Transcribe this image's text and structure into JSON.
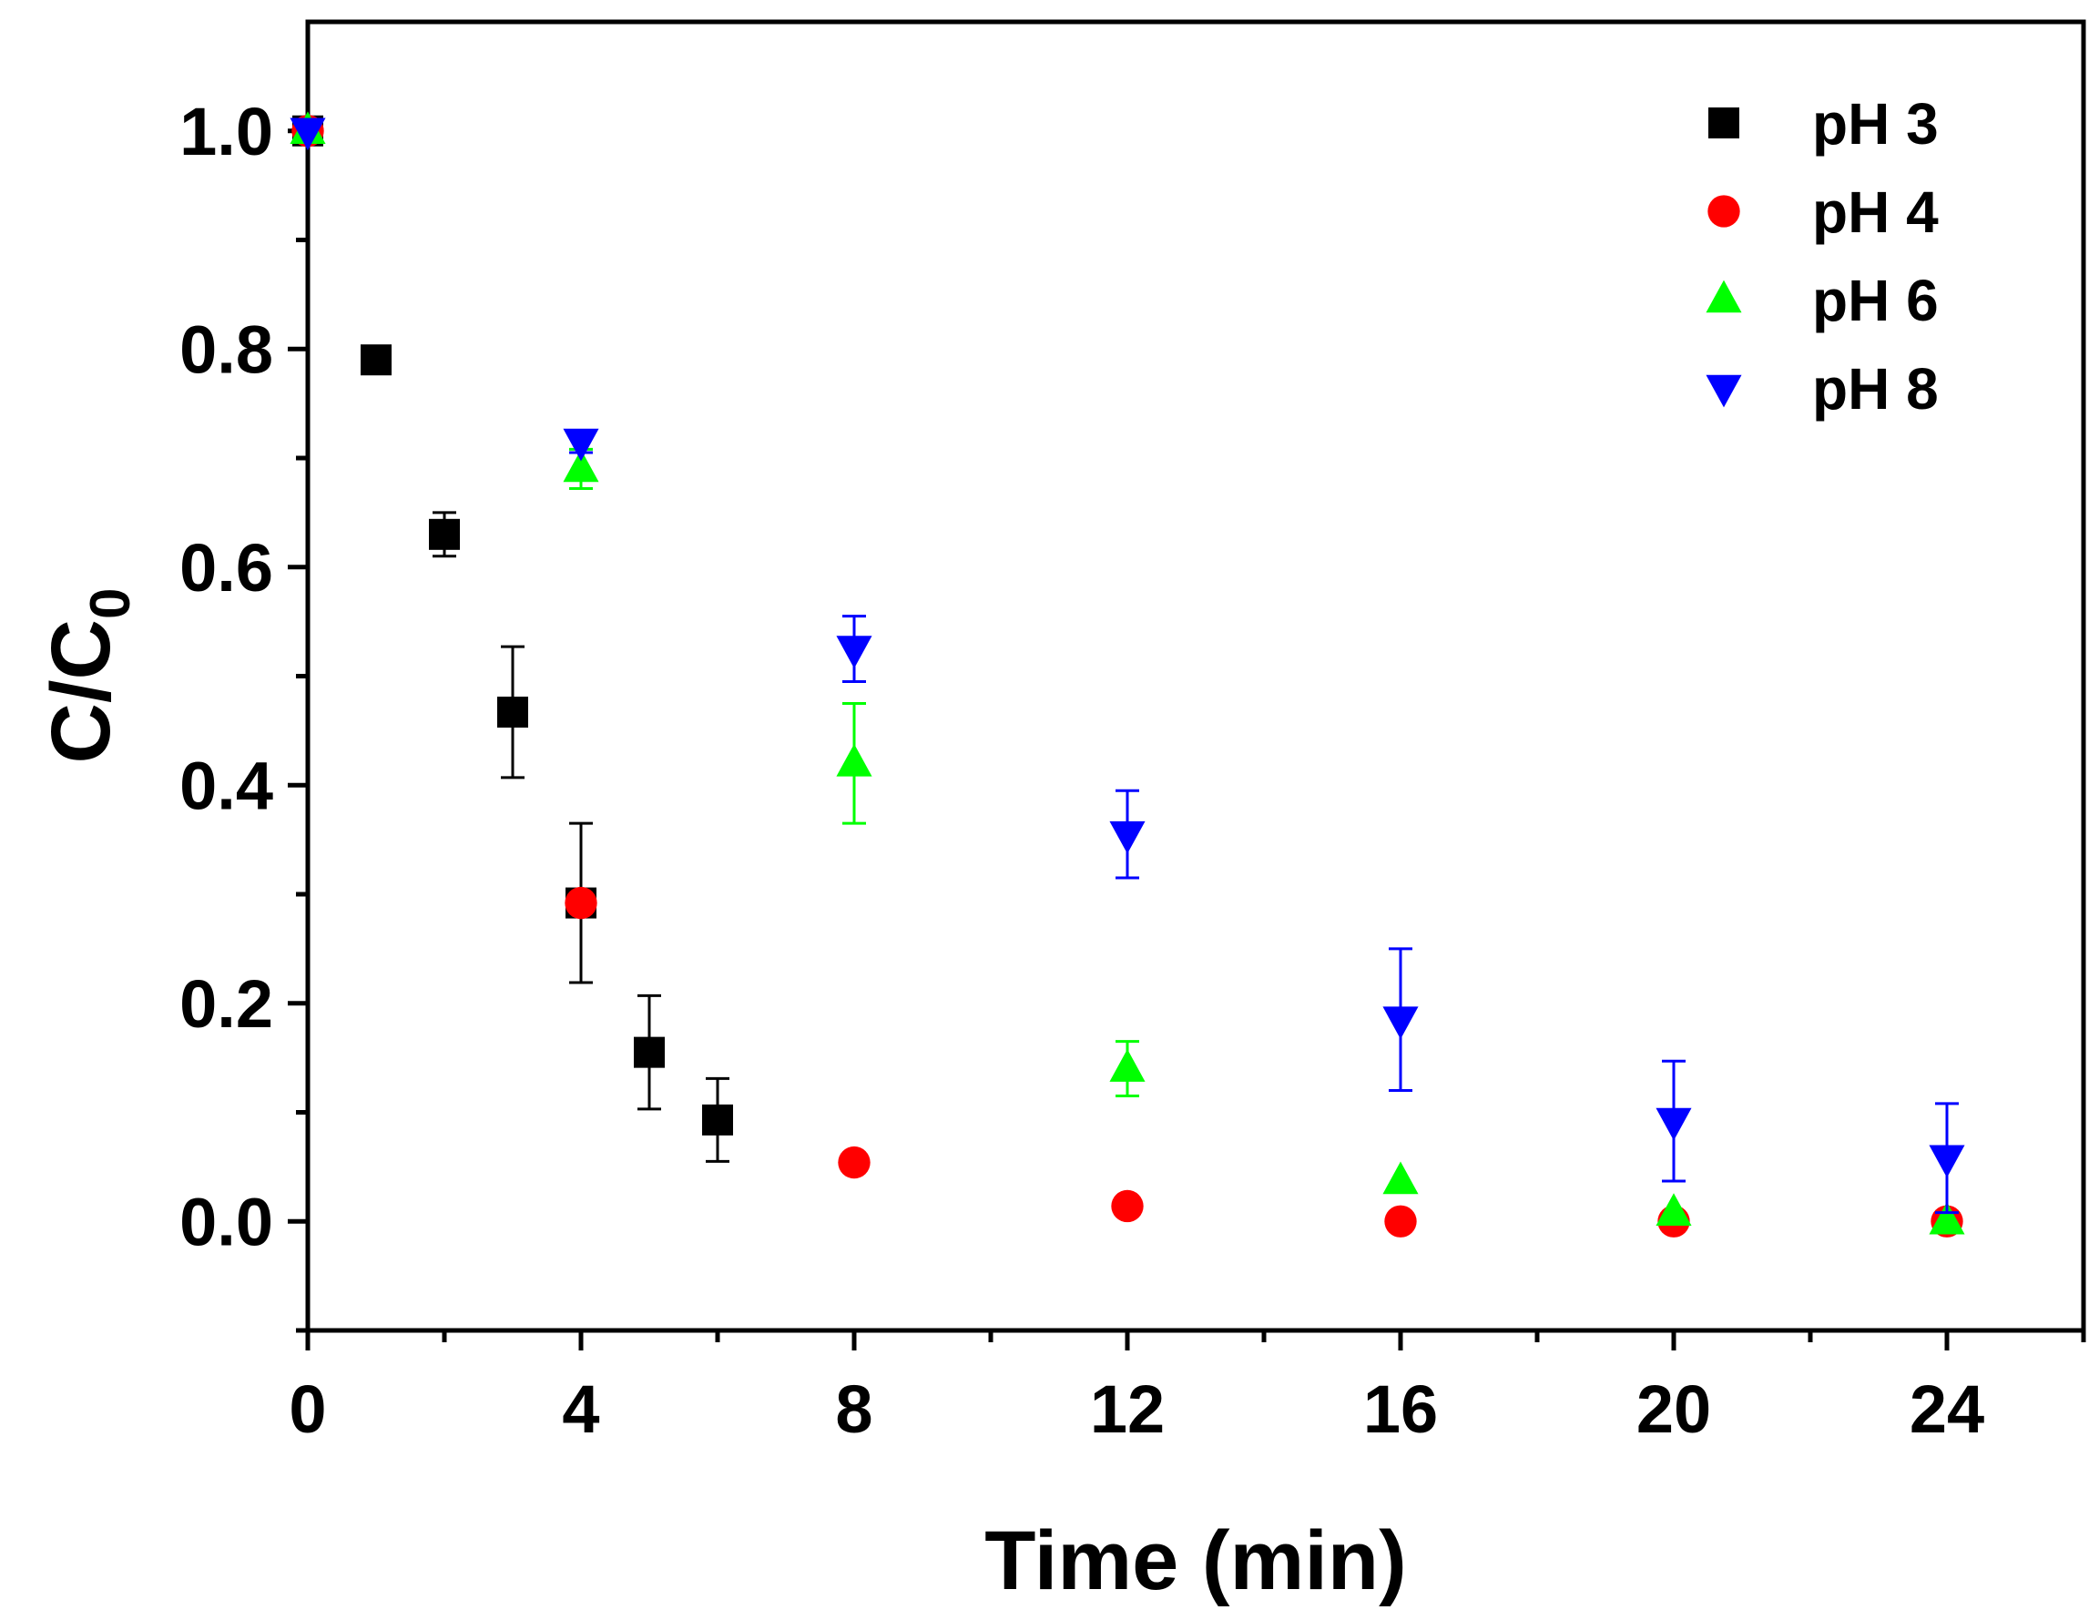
{
  "chart_data": {
    "type": "scatter",
    "xlabel": "Time (min)",
    "ylabel_main": "C/C",
    "ylabel_sub": "0",
    "xlim": [
      0,
      26
    ],
    "ylim": [
      -0.1,
      1.1
    ],
    "xticks": [
      0,
      4,
      8,
      12,
      16,
      20,
      24
    ],
    "xtick_labels": [
      "0",
      "4",
      "8",
      "12",
      "16",
      "20",
      "24"
    ],
    "x_minor_ticks": [
      2,
      6,
      10,
      14,
      18,
      22,
      26
    ],
    "yticks": [
      0.0,
      0.2,
      0.4,
      0.6,
      0.8,
      1.0
    ],
    "ytick_labels": [
      "0.0",
      "0.2",
      "0.4",
      "0.6",
      "0.8",
      "1.0"
    ],
    "y_minor_ticks": [
      -0.1,
      0.1,
      0.3,
      0.5,
      0.7,
      0.9
    ],
    "legend_position": "top-right",
    "series": [
      {
        "name": "pH 3",
        "marker": "square",
        "color": "#000000",
        "x": [
          0,
          1,
          2,
          3,
          4,
          5,
          6
        ],
        "y": [
          1.0,
          0.79,
          0.63,
          0.467,
          0.292,
          0.155,
          0.093
        ],
        "err": [
          0,
          0,
          0.02,
          0.06,
          0.073,
          0.052,
          0.038
        ]
      },
      {
        "name": "pH 4",
        "marker": "circle",
        "color": "#ff0000",
        "x": [
          0,
          4,
          8,
          12,
          16,
          20,
          24
        ],
        "y": [
          1.0,
          0.292,
          0.054,
          0.014,
          0.0,
          0.0,
          0.0
        ],
        "err": [
          0,
          0,
          0,
          0,
          0,
          0,
          0
        ]
      },
      {
        "name": "pH 6",
        "marker": "triangle-up",
        "color": "#00ff00",
        "x": [
          0,
          4,
          8,
          12,
          16,
          20,
          24
        ],
        "y": [
          1.0,
          0.69,
          0.42,
          0.14,
          0.037,
          0.008,
          0.0
        ],
        "err": [
          0,
          0.018,
          0.055,
          0.025,
          0,
          0,
          0
        ]
      },
      {
        "name": "pH 8",
        "marker": "triangle-down",
        "color": "#0000ff",
        "x": [
          0,
          4,
          8,
          12,
          16,
          20,
          24
        ],
        "y": [
          1.0,
          0.715,
          0.525,
          0.355,
          0.185,
          0.092,
          0.058
        ],
        "err": [
          0,
          0.01,
          0.03,
          0.04,
          0.065,
          0.055,
          0.05
        ]
      }
    ]
  }
}
